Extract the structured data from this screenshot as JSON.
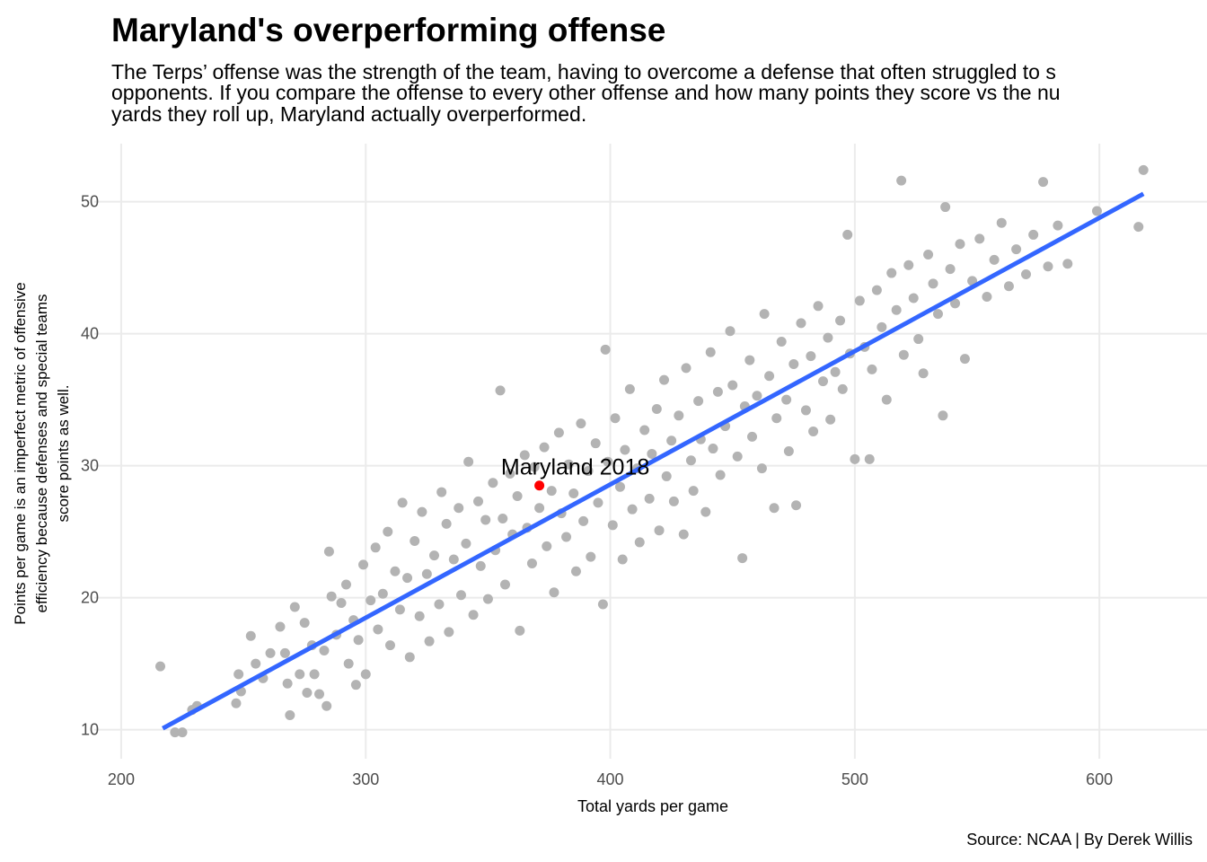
{
  "chart_data": {
    "type": "scatter",
    "title": "Maryland's overperforming offense",
    "subtitle": [
      "The Terps’ offense was the strength of the team, having to overcome a defense that often struggled to s",
      "opponents. If you compare the offense to every other offense and how many points they score vs the nu",
      "yards they roll up, Maryland actually overperformed."
    ],
    "x_label": "Total yards per game",
    "y_label": [
      "Points per game is an imperfect metric of offensive",
      "efficiency because defenses and special teams",
      "score points as well."
    ],
    "caption": "Source: NCAA | By Derek Willis",
    "xlim": [
      189,
      644
    ],
    "ylim": [
      7.8,
      54.4
    ],
    "xticks": [
      200,
      300,
      400,
      500,
      600
    ],
    "yticks": [
      10,
      20,
      30,
      40,
      50
    ],
    "grid": true,
    "color": "#b3b3b3",
    "x": [
      216,
      222,
      225,
      229,
      231,
      247,
      248,
      249,
      253,
      255,
      258,
      261,
      265,
      267,
      268,
      269,
      271,
      273,
      275,
      276,
      278,
      279,
      281,
      283,
      284,
      285,
      286,
      288,
      290,
      292,
      293,
      295,
      296,
      297,
      299,
      300,
      302,
      304,
      305,
      307,
      309,
      310,
      312,
      314,
      315,
      317,
      318,
      320,
      322,
      323,
      325,
      326,
      328,
      330,
      331,
      333,
      334,
      336,
      338,
      339,
      341,
      342,
      344,
      346,
      347,
      349,
      350,
      352,
      353,
      355,
      356,
      357,
      359,
      360,
      362,
      363,
      365,
      366,
      368,
      369,
      371,
      373,
      374,
      376,
      377,
      379,
      380,
      382,
      383,
      385,
      386,
      388,
      389,
      391,
      392,
      394,
      395,
      397,
      398,
      399,
      401,
      402,
      404,
      405,
      406,
      408,
      409,
      411,
      412,
      414,
      416,
      417,
      419,
      420,
      422,
      423,
      425,
      426,
      428,
      430,
      431,
      433,
      434,
      436,
      437,
      439,
      441,
      442,
      444,
      445,
      447,
      449,
      450,
      452,
      454,
      455,
      457,
      458,
      460,
      462,
      463,
      465,
      467,
      468,
      470,
      472,
      473,
      475,
      476,
      478,
      480,
      482,
      483,
      485,
      487,
      489,
      490,
      492,
      494,
      495,
      497,
      498,
      500,
      502,
      504,
      506,
      507,
      509,
      511,
      513,
      515,
      517,
      519,
      520,
      522,
      524,
      526,
      528,
      530,
      532,
      534,
      536,
      537,
      539,
      541,
      543,
      545,
      548,
      551,
      554,
      557,
      560,
      563,
      566,
      570,
      573,
      577,
      579,
      583,
      587,
      599,
      616,
      618
    ],
    "y": [
      14.8,
      9.8,
      9.8,
      11.5,
      11.8,
      12.0,
      14.2,
      12.9,
      17.1,
      15.0,
      13.9,
      15.8,
      17.8,
      15.8,
      13.5,
      11.1,
      19.3,
      14.2,
      18.1,
      12.8,
      16.4,
      14.2,
      12.7,
      16.0,
      11.8,
      23.5,
      20.1,
      17.2,
      19.6,
      21.0,
      15.0,
      18.3,
      13.4,
      16.8,
      22.5,
      14.2,
      19.8,
      23.8,
      17.6,
      20.3,
      25.0,
      16.4,
      22.0,
      19.1,
      27.2,
      21.5,
      15.5,
      24.3,
      18.6,
      26.5,
      21.8,
      16.7,
      23.2,
      19.5,
      28.0,
      25.6,
      17.4,
      22.9,
      26.8,
      20.2,
      24.1,
      30.3,
      18.7,
      27.3,
      22.4,
      25.9,
      19.9,
      28.7,
      23.6,
      35.7,
      26.0,
      21.0,
      29.4,
      24.8,
      27.7,
      17.5,
      30.8,
      25.3,
      22.6,
      29.9,
      26.8,
      31.4,
      23.9,
      28.1,
      20.4,
      32.5,
      26.4,
      24.6,
      30.1,
      27.9,
      22.0,
      33.2,
      25.8,
      29.6,
      23.1,
      31.7,
      27.2,
      19.5,
      38.8,
      30.3,
      25.5,
      33.6,
      28.4,
      22.9,
      31.2,
      35.8,
      26.7,
      29.8,
      24.2,
      32.7,
      27.5,
      30.9,
      34.3,
      25.1,
      36.5,
      29.2,
      31.9,
      27.3,
      33.8,
      24.8,
      37.4,
      30.4,
      28.1,
      34.9,
      32.0,
      26.5,
      38.6,
      31.3,
      35.6,
      29.3,
      33.0,
      40.2,
      36.1,
      30.7,
      23.0,
      34.5,
      38.0,
      32.2,
      35.3,
      29.8,
      41.5,
      36.8,
      26.8,
      33.6,
      39.4,
      35.0,
      31.1,
      37.7,
      27.0,
      40.8,
      34.2,
      38.3,
      32.6,
      42.1,
      36.4,
      39.7,
      33.5,
      37.1,
      41.0,
      35.8,
      47.5,
      38.5,
      30.5,
      42.5,
      39.0,
      30.5,
      37.3,
      43.3,
      40.5,
      35.0,
      44.6,
      41.8,
      51.6,
      38.4,
      45.2,
      42.7,
      39.6,
      37.0,
      46.0,
      43.8,
      41.5,
      33.8,
      49.6,
      44.9,
      42.3,
      46.8,
      38.1,
      44.0,
      47.2,
      42.8,
      45.6,
      48.4,
      43.6,
      46.4,
      44.5,
      47.5,
      51.5,
      45.1,
      48.2,
      45.3,
      49.3,
      48.1,
      52.4
    ],
    "trend": {
      "color": "#3366ff",
      "x": [
        217,
        618
      ],
      "y": [
        10.1,
        50.6
      ]
    },
    "highlight": {
      "label": "Maryland 2018",
      "x": 371,
      "y": 28.5,
      "color": "#ff0000"
    }
  }
}
